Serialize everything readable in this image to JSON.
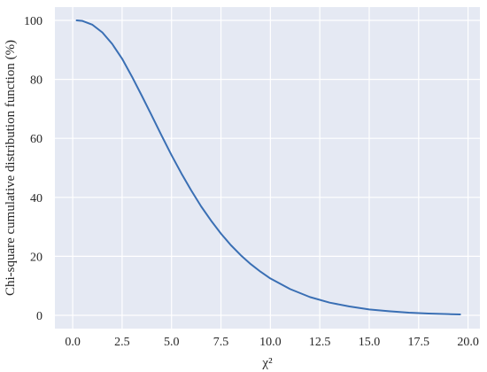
{
  "chart_data": {
    "type": "line",
    "title": "",
    "xlabel": "χ²",
    "ylabel": "Chi-square cumulative distribution function (%)",
    "xlim": [
      -0.9,
      20.6
    ],
    "ylim": [
      -4.5,
      104.5
    ],
    "x_ticks": [
      0.0,
      2.5,
      5.0,
      7.5,
      10.0,
      12.5,
      15.0,
      17.5,
      20.0
    ],
    "x_tick_labels": [
      "0.0",
      "2.5",
      "5.0",
      "7.5",
      "10.0",
      "12.5",
      "15.0",
      "17.5",
      "20.0"
    ],
    "y_ticks": [
      0,
      20,
      40,
      60,
      80,
      100
    ],
    "y_tick_labels": [
      "0",
      "20",
      "40",
      "60",
      "80",
      "100"
    ],
    "grid": true,
    "legend": "none",
    "colors": {
      "plot_background": "#e5e9f3",
      "grid": "#ffffff",
      "line": "#3a6fb4",
      "text": "#262626"
    },
    "series": [
      {
        "x": [
          0.2,
          0.5,
          1.0,
          1.5,
          2.0,
          2.5,
          3.0,
          3.5,
          4.0,
          4.5,
          5.0,
          5.5,
          6.0,
          6.5,
          7.0,
          7.5,
          8.0,
          8.5,
          9.0,
          9.5,
          10.0,
          11.0,
          12.0,
          13.0,
          14.0,
          15.0,
          16.0,
          17.0,
          18.0,
          19.0,
          19.6
        ],
        "values": [
          100.0,
          99.8,
          98.5,
          95.9,
          92.0,
          87.0,
          80.9,
          74.4,
          67.7,
          60.9,
          54.3,
          48.1,
          42.3,
          36.9,
          32.1,
          27.7,
          23.8,
          20.4,
          17.4,
          14.8,
          12.5,
          8.9,
          6.2,
          4.3,
          3.0,
          2.0,
          1.4,
          0.9,
          0.6,
          0.4,
          0.3
        ]
      }
    ]
  }
}
